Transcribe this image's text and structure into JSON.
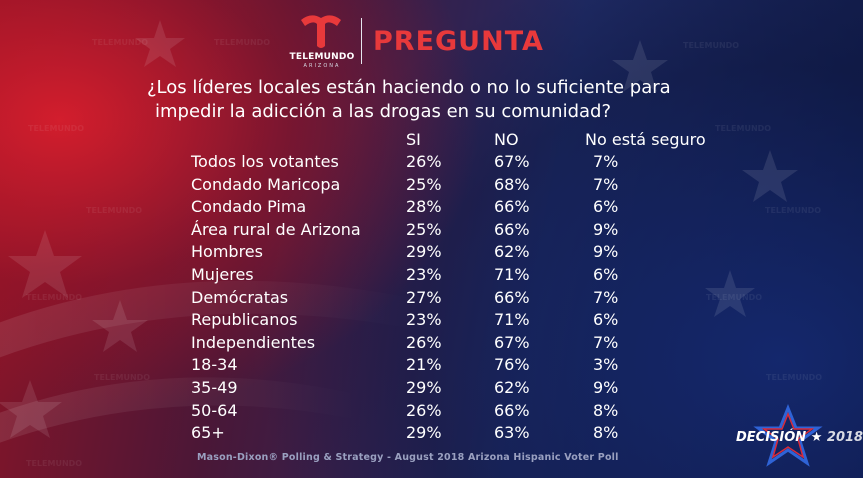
{
  "logo": {
    "name": "TELEMUNDO",
    "region": "ARIZONA",
    "brand_color": "#e8393b"
  },
  "title": "PREGUNTA",
  "question": {
    "line1": "¿Los líderes locales están haciendo o no lo suficiente para",
    "line2": "impedir la adicción a las drogas en su comunidad?"
  },
  "columns": {
    "si": "SI",
    "no": "NO",
    "not_sure": "No está seguro"
  },
  "rows": [
    {
      "label": "Todos los votantes",
      "si": "26%",
      "no": "67%",
      "not_sure": "7%"
    },
    {
      "label": "Condado Maricopa",
      "si": "25%",
      "no": "68%",
      "not_sure": "7%"
    },
    {
      "label": "Condado Pima",
      "si": "28%",
      "no": "66%",
      "not_sure": "6%"
    },
    {
      "label": "Área rural de Arizona",
      "si": "25%",
      "no": "66%",
      "not_sure": "9%"
    },
    {
      "label": "Hombres",
      "si": "29%",
      "no": "62%",
      "not_sure": "9%"
    },
    {
      "label": "Mujeres",
      "si": "23%",
      "no": "71%",
      "not_sure": "6%"
    },
    {
      "label": "Demócratas",
      "si": "27%",
      "no": "66%",
      "not_sure": "7%"
    },
    {
      "label": "Republicanos",
      "si": "23%",
      "no": "71%",
      "not_sure": "6%"
    },
    {
      "label": "Independientes",
      "si": "26%",
      "no": "67%",
      "not_sure": "7%"
    },
    {
      "label": "18-34",
      "si": "21%",
      "no": "76%",
      "not_sure": "3%"
    },
    {
      "label": "35-49",
      "si": "29%",
      "no": "62%",
      "not_sure": "9%"
    },
    {
      "label": "50-64",
      "si": "26%",
      "no": "66%",
      "not_sure": "8%"
    },
    {
      "label": "65+",
      "si": "29%",
      "no": "63%",
      "not_sure": "8%"
    }
  ],
  "footer": "Mason-Dixon® Polling & Strategy - August 2018 Arizona Hispanic Voter Poll",
  "badge": {
    "word": "DECISIÓN",
    "year": "2018",
    "star": "★"
  }
}
